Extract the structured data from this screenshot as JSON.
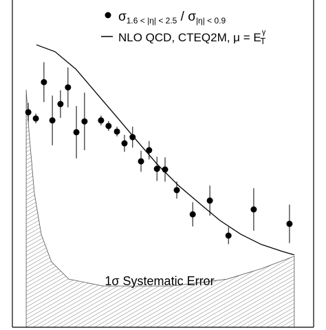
{
  "chart_data": {
    "type": "scatter",
    "xlim": [
      0,
      100
    ],
    "ylim": [
      0,
      100
    ],
    "series": [
      {
        "name": [
          "σ",
          "1.6 < |η| < 2.5",
          " / σ",
          "|η| < 0.9"
        ],
        "color": "#000000",
        "x": [
          5.3,
          7.8,
          10.5,
          13.3,
          16.0,
          18.5,
          21.3,
          24.0,
          29.5,
          32.0,
          34.8,
          37.3,
          40.0,
          42.8,
          45.5,
          48.1,
          50.8,
          54.7,
          60.0,
          65.7,
          71.9,
          80.3,
          92.2
        ],
        "values": [
          65.7,
          63.8,
          74.9,
          63.2,
          68.2,
          73.3,
          59.6,
          62.9,
          63.2,
          61.5,
          59.8,
          56.2,
          58.1,
          50.7,
          54.1,
          48.4,
          48.2,
          41.9,
          34.5,
          38.7,
          28.0,
          36.0,
          31.6
        ],
        "errors": [
          2.9,
          1.5,
          6.1,
          7.6,
          4.2,
          6.1,
          8.0,
          8.8,
          1.5,
          1.5,
          1.5,
          2.6,
          3.2,
          3.2,
          2.8,
          3.7,
          3.7,
          2.6,
          3.7,
          4.6,
          2.6,
          6.5,
          5.9
        ]
      },
      {
        "name": [
          "NLO QCD, CTEQ2M, μ = E",
          "γ",
          "T"
        ],
        "color": "#000000",
        "x": [
          8.0,
          14.2,
          21.1,
          27.9,
          34.8,
          41.6,
          48.5,
          55.4,
          62.2,
          69.1,
          76.0,
          82.8,
          89.7,
          93.8
        ],
        "values": [
          86.3,
          84.2,
          78.9,
          71.6,
          64.2,
          56.8,
          49.5,
          43.2,
          37.9,
          32.6,
          28.4,
          25.3,
          23.2,
          22.1
        ]
      }
    ],
    "band": {
      "name": "1σ Systematic Error",
      "x": [
        4.6,
        5.5,
        7.3,
        9.6,
        13.0,
        18.8,
        30.2,
        53.1,
        71.4,
        82.8,
        93.8
      ],
      "upper": [
        72.6,
        60.0,
        41.1,
        28.4,
        20.0,
        14.7,
        12.6,
        12.6,
        14.7,
        17.9,
        21.7
      ]
    }
  }
}
